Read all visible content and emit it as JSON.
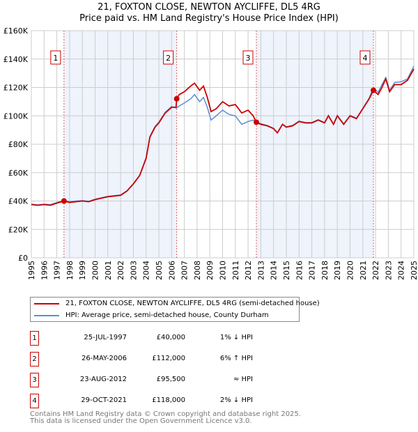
{
  "title_line1": "21, FOXTON CLOSE, NEWTON AYCLIFFE, DL5 4RG",
  "title_line2": "Price paid vs. HM Land Registry's House Price Index (HPI)",
  "chart_data": {
    "type": "line",
    "ylim": [
      0,
      160000
    ],
    "xlim": [
      1995,
      2025
    ],
    "yticks": [
      0,
      20000,
      40000,
      60000,
      80000,
      100000,
      120000,
      140000,
      160000
    ],
    "ytick_labels": [
      "£0",
      "£20K",
      "£40K",
      "£60K",
      "£80K",
      "£100K",
      "£120K",
      "£140K",
      "£160K"
    ],
    "xticks": [
      1995,
      1996,
      1997,
      1998,
      1999,
      2000,
      2001,
      2002,
      2003,
      2004,
      2005,
      2006,
      2007,
      2008,
      2009,
      2010,
      2011,
      2012,
      2013,
      2014,
      2015,
      2016,
      2017,
      2018,
      2019,
      2020,
      2021,
      2022,
      2023,
      2024,
      2025
    ],
    "grid": true,
    "colors": {
      "property": "#cc0000",
      "hpi": "#5b8fd1",
      "band": "#eef3fc"
    },
    "series": [
      {
        "name": "21, FOXTON CLOSE, NEWTON AYCLIFFE, DL5 4RG (semi-detached house)",
        "x": [
          1995,
          1995.5,
          1996,
          1996.5,
          1997,
          1997.56,
          1998,
          1998.5,
          1999,
          1999.5,
          2000,
          2000.5,
          2001,
          2001.5,
          2002,
          2002.5,
          2003,
          2003.5,
          2004,
          2004.3,
          2004.7,
          2005,
          2005.5,
          2006,
          2006.35,
          2006.4,
          2006.6,
          2007,
          2007.5,
          2007.8,
          2008.2,
          2008.5,
          2008.8,
          2009.1,
          2009.5,
          2010,
          2010.5,
          2011,
          2011.5,
          2012,
          2012.4,
          2012.65,
          2013,
          2013.5,
          2014,
          2014.3,
          2014.7,
          2015,
          2015.5,
          2016,
          2016.5,
          2017,
          2017.5,
          2018,
          2018.3,
          2018.7,
          2019,
          2019.5,
          2020,
          2020.5,
          2021,
          2021.5,
          2021.83,
          2022.2,
          2022.5,
          2022.8,
          2023.1,
          2023.5,
          2024,
          2024.5,
          2025
        ],
        "y": [
          37500,
          37000,
          37500,
          37000,
          38500,
          40000,
          39000,
          39500,
          40000,
          39500,
          41000,
          42000,
          43000,
          43500,
          44000,
          47000,
          52000,
          58000,
          70000,
          85000,
          92000,
          95000,
          102000,
          106000,
          106000,
          112000,
          115000,
          117000,
          121000,
          123000,
          118000,
          121000,
          113000,
          103000,
          105000,
          110000,
          107000,
          108000,
          102000,
          104000,
          100000,
          95500,
          94000,
          93000,
          91000,
          88000,
          94000,
          92000,
          93000,
          96000,
          95000,
          95000,
          97000,
          95000,
          100000,
          94000,
          100000,
          94000,
          100000,
          98000,
          105000,
          112000,
          118000,
          115000,
          120000,
          126000,
          117000,
          122000,
          122000,
          125000,
          133000
        ]
      },
      {
        "name": "HPI: Average price, semi-detached house, County Durham",
        "x": [
          1995,
          1995.5,
          1996,
          1996.5,
          1997,
          1997.56,
          1998,
          1998.5,
          1999,
          1999.5,
          2000,
          2000.5,
          2001,
          2001.5,
          2002,
          2002.5,
          2003,
          2003.5,
          2004,
          2004.3,
          2004.7,
          2005,
          2005.5,
          2006,
          2006.4,
          2006.6,
          2007,
          2007.5,
          2007.8,
          2008.2,
          2008.5,
          2008.8,
          2009.1,
          2009.5,
          2010,
          2010.5,
          2011,
          2011.5,
          2012,
          2012.4,
          2012.65,
          2013,
          2013.5,
          2014,
          2014.3,
          2014.7,
          2015,
          2015.5,
          2016,
          2016.5,
          2017,
          2017.5,
          2018,
          2018.3,
          2018.7,
          2019,
          2019.5,
          2020,
          2020.5,
          2021,
          2021.5,
          2021.83,
          2022.2,
          2022.5,
          2022.8,
          2023.1,
          2023.5,
          2024,
          2024.5,
          2025
        ],
        "y": [
          37800,
          37300,
          37800,
          37500,
          39000,
          40400,
          39500,
          40000,
          40300,
          39800,
          41300,
          42300,
          43300,
          43800,
          44300,
          47300,
          52300,
          58300,
          70500,
          85500,
          92500,
          95500,
          102500,
          106500,
          105500,
          107000,
          109000,
          112000,
          115000,
          110000,
          113000,
          106000,
          97000,
          100000,
          104000,
          101000,
          100000,
          94000,
          96000,
          97000,
          95500,
          94500,
          93200,
          91200,
          88200,
          94200,
          92200,
          93300,
          96300,
          95300,
          95300,
          97300,
          95300,
          100300,
          94300,
          100300,
          94300,
          100300,
          98300,
          105300,
          112500,
          120000,
          116500,
          122000,
          127000,
          118000,
          123500,
          124000,
          126000,
          135000
        ]
      }
    ],
    "markers": [
      {
        "label": "1",
        "x": 1997.56,
        "y": 40000
      },
      {
        "label": "2",
        "x": 2006.4,
        "y": 112000
      },
      {
        "label": "3",
        "x": 2012.65,
        "y": 95500
      },
      {
        "label": "4",
        "x": 2021.83,
        "y": 118000
      }
    ]
  },
  "legend": {
    "property": "21, FOXTON CLOSE, NEWTON AYCLIFFE, DL5 4RG (semi-detached house)",
    "hpi": "HPI: Average price, semi-detached house, County Durham"
  },
  "sales": [
    {
      "num": "1",
      "date": "25-JUL-1997",
      "price": "£40,000",
      "hpi": "1% ↓ HPI"
    },
    {
      "num": "2",
      "date": "26-MAY-2006",
      "price": "£112,000",
      "hpi": "6% ↑ HPI"
    },
    {
      "num": "3",
      "date": "23-AUG-2012",
      "price": "£95,500",
      "hpi": "≈ HPI"
    },
    {
      "num": "4",
      "date": "29-OCT-2021",
      "price": "£118,000",
      "hpi": "2% ↓ HPI"
    }
  ],
  "footer": {
    "line1": "Contains HM Land Registry data © Crown copyright and database right 2025.",
    "line2": "This data is licensed under the Open Government Licence v3.0."
  }
}
